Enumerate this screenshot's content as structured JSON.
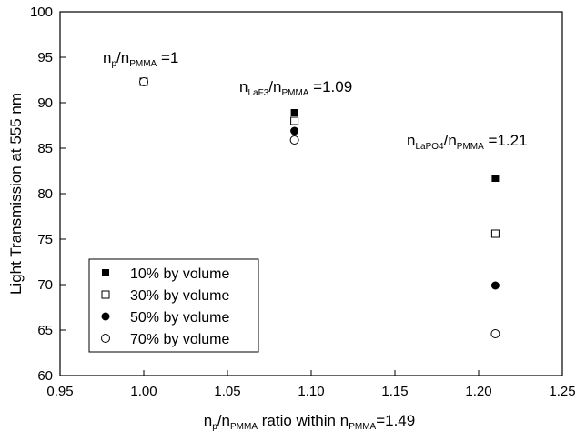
{
  "chart_data": {
    "type": "scatter",
    "xlim": [
      0.95,
      1.25
    ],
    "ylim": [
      60,
      100
    ],
    "x_ticks": [
      "0.95",
      "1.00",
      "1.05",
      "1.10",
      "1.15",
      "1.20",
      "1.25"
    ],
    "y_ticks": [
      "60",
      "65",
      "70",
      "75",
      "80",
      "85",
      "90",
      "95",
      "100"
    ],
    "xlabel": {
      "main": "n",
      "sub_p": "p",
      "slash": "/n",
      "sub_pmma": "PMMA",
      "mid": " ratio within n",
      "sub_pmma2": "PMMA",
      "tail": "=1.49"
    },
    "ylabel": "Light Transmission at 555 nm",
    "grid": false,
    "legend_position": "bottom-left",
    "series": [
      {
        "name": "10% by volume",
        "marker": "filled-square",
        "x": [
          1.09,
          1.21
        ],
        "y": [
          88.9,
          81.7
        ]
      },
      {
        "name": "30% by volume",
        "marker": "open-square",
        "x": [
          1.0,
          1.09,
          1.21
        ],
        "y": [
          92.3,
          88.0,
          75.6
        ]
      },
      {
        "name": "50% by volume",
        "marker": "filled-circle",
        "x": [
          1.09,
          1.21
        ],
        "y": [
          86.9,
          69.9
        ]
      },
      {
        "name": "70% by volume",
        "marker": "open-circle",
        "x": [
          1.0,
          1.09,
          1.21
        ],
        "y": [
          92.3,
          85.9,
          64.6
        ]
      }
    ],
    "annotations": [
      {
        "main": "n",
        "sub1": "p",
        "mid": "/n",
        "sub2": "PMMA",
        "tail": " =1"
      },
      {
        "main": "n",
        "sub1": "LaF3",
        "mid": "/n",
        "sub2": "PMMA",
        "tail": " =1.09"
      },
      {
        "main": "n",
        "sub1": "LaPO4",
        "mid": "/n",
        "sub2": "PMMA",
        "tail": " =1.21"
      }
    ]
  }
}
